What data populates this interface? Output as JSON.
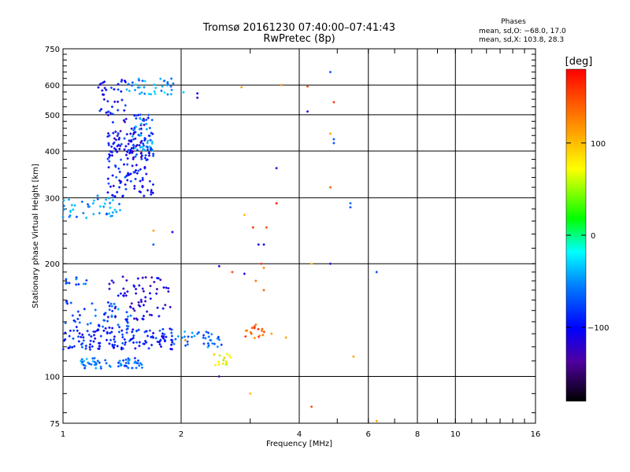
{
  "chart_data": {
    "type": "scatter",
    "title": "Tromsø 20161230 07:40:00–07:41:43",
    "subtitle": "RwPretec (8p)",
    "stats": {
      "heading": "Phases",
      "line1": "mean, sd,O: −68.0, 17.0",
      "line2": "mean, sd,X: 103.8, 28.3"
    },
    "xlabel": "Frequency [MHz]",
    "ylabel": "Stationary phase Virtual Height [km]",
    "x_scale": "log",
    "y_scale": "log",
    "xlim": [
      1,
      16
    ],
    "ylim": [
      75,
      750
    ],
    "x_ticks": [
      1,
      2,
      4,
      6,
      8,
      10,
      16
    ],
    "y_ticks": [
      75,
      100,
      200,
      300,
      400,
      500,
      600,
      750
    ],
    "grid": true,
    "colorbar": {
      "label": "[deg]",
      "range": [
        -180,
        180
      ],
      "ticks": [
        100,
        0,
        -100
      ]
    },
    "series": [
      {
        "clusters": [
          {
            "x": [
              1.1,
              1.6
            ],
            "y": [
              105,
              112
            ],
            "phase": -60,
            "n": 60,
            "seed": 11
          },
          {
            "x": [
              1.0,
              1.9
            ],
            "y": [
              118,
              135
            ],
            "phase": -90,
            "n": 140,
            "seed": 12
          },
          {
            "x": [
              1.0,
              1.5
            ],
            "y": [
              135,
              160
            ],
            "phase": -70,
            "n": 50,
            "seed": 13
          },
          {
            "x": [
              1.3,
              1.9
            ],
            "y": [
              140,
              185
            ],
            "phase": -115,
            "n": 70,
            "seed": 14
          },
          {
            "x": [
              1.0,
              1.15
            ],
            "y": [
              175,
              185
            ],
            "phase": -65,
            "n": 12,
            "seed": 15
          },
          {
            "x": [
              1.9,
              2.6
            ],
            "y": [
              118,
              132
            ],
            "phase": -60,
            "n": 35,
            "seed": 16
          },
          {
            "x": [
              2.4,
              2.7
            ],
            "y": [
              106,
              115
            ],
            "phase": 70,
            "n": 15,
            "seed": 17
          },
          {
            "x": [
              2.9,
              3.3
            ],
            "y": [
              125,
              140
            ],
            "phase": 140,
            "n": 18,
            "seed": 18
          },
          {
            "x": [
              1.0,
              1.4
            ],
            "y": [
              265,
              305
            ],
            "phase": -55,
            "n": 45,
            "seed": 19
          },
          {
            "x": [
              1.3,
              1.7
            ],
            "y": [
              300,
              450
            ],
            "phase": -90,
            "n": 120,
            "seed": 20
          },
          {
            "x": [
              1.3,
              1.7
            ],
            "y": [
              380,
              500
            ],
            "phase": -110,
            "n": 60,
            "seed": 21
          },
          {
            "x": [
              1.5,
              1.7
            ],
            "y": [
              400,
              500
            ],
            "phase": -55,
            "n": 40,
            "seed": 22
          },
          {
            "x": [
              1.2,
              1.45
            ],
            "y": [
              500,
              620
            ],
            "phase": -95,
            "n": 35,
            "seed": 23
          },
          {
            "x": [
              1.45,
              2.05
            ],
            "y": [
              565,
              630
            ],
            "phase": -50,
            "n": 40,
            "seed": 24
          }
        ],
        "points": [
          [
            2.2,
            570,
            -100
          ],
          [
            2.2,
            555,
            -120
          ],
          [
            2.85,
            592,
            110
          ],
          [
            3.6,
            600,
            120
          ],
          [
            4.2,
            595,
            150
          ],
          [
            4.2,
            510,
            -115
          ],
          [
            4.8,
            650,
            -70
          ],
          [
            4.9,
            540,
            160
          ],
          [
            4.8,
            445,
            110
          ],
          [
            4.9,
            430,
            -70
          ],
          [
            4.9,
            420,
            -75
          ],
          [
            3.5,
            360,
            -120
          ],
          [
            3.5,
            290,
            170
          ],
          [
            4.8,
            320,
            140
          ],
          [
            5.4,
            290,
            -65
          ],
          [
            5.4,
            283,
            -70
          ],
          [
            2.9,
            270,
            100
          ],
          [
            3.05,
            250,
            160
          ],
          [
            3.3,
            250,
            150
          ],
          [
            3.15,
            225,
            -115
          ],
          [
            3.25,
            225,
            -100
          ],
          [
            1.7,
            245,
            110
          ],
          [
            1.9,
            243,
            -100
          ],
          [
            1.7,
            225,
            -70
          ],
          [
            2.5,
            197,
            -110
          ],
          [
            3.2,
            200,
            160
          ],
          [
            3.25,
            195,
            120
          ],
          [
            4.3,
            200,
            100
          ],
          [
            4.8,
            200,
            -120
          ],
          [
            6.3,
            190,
            -75
          ],
          [
            2.7,
            190,
            150
          ],
          [
            2.9,
            188,
            -110
          ],
          [
            3.1,
            180,
            130
          ],
          [
            3.25,
            170,
            140
          ],
          [
            3.4,
            130,
            110
          ],
          [
            3.7,
            127,
            110
          ],
          [
            5.5,
            113,
            110
          ],
          [
            2.5,
            100,
            -135
          ],
          [
            3.0,
            90,
            100
          ],
          [
            4.3,
            83,
            150
          ],
          [
            6.3,
            76,
            110
          ],
          [
            2.05,
            125,
            120
          ],
          [
            2.2,
            130,
            -60
          ]
        ]
      }
    ]
  }
}
